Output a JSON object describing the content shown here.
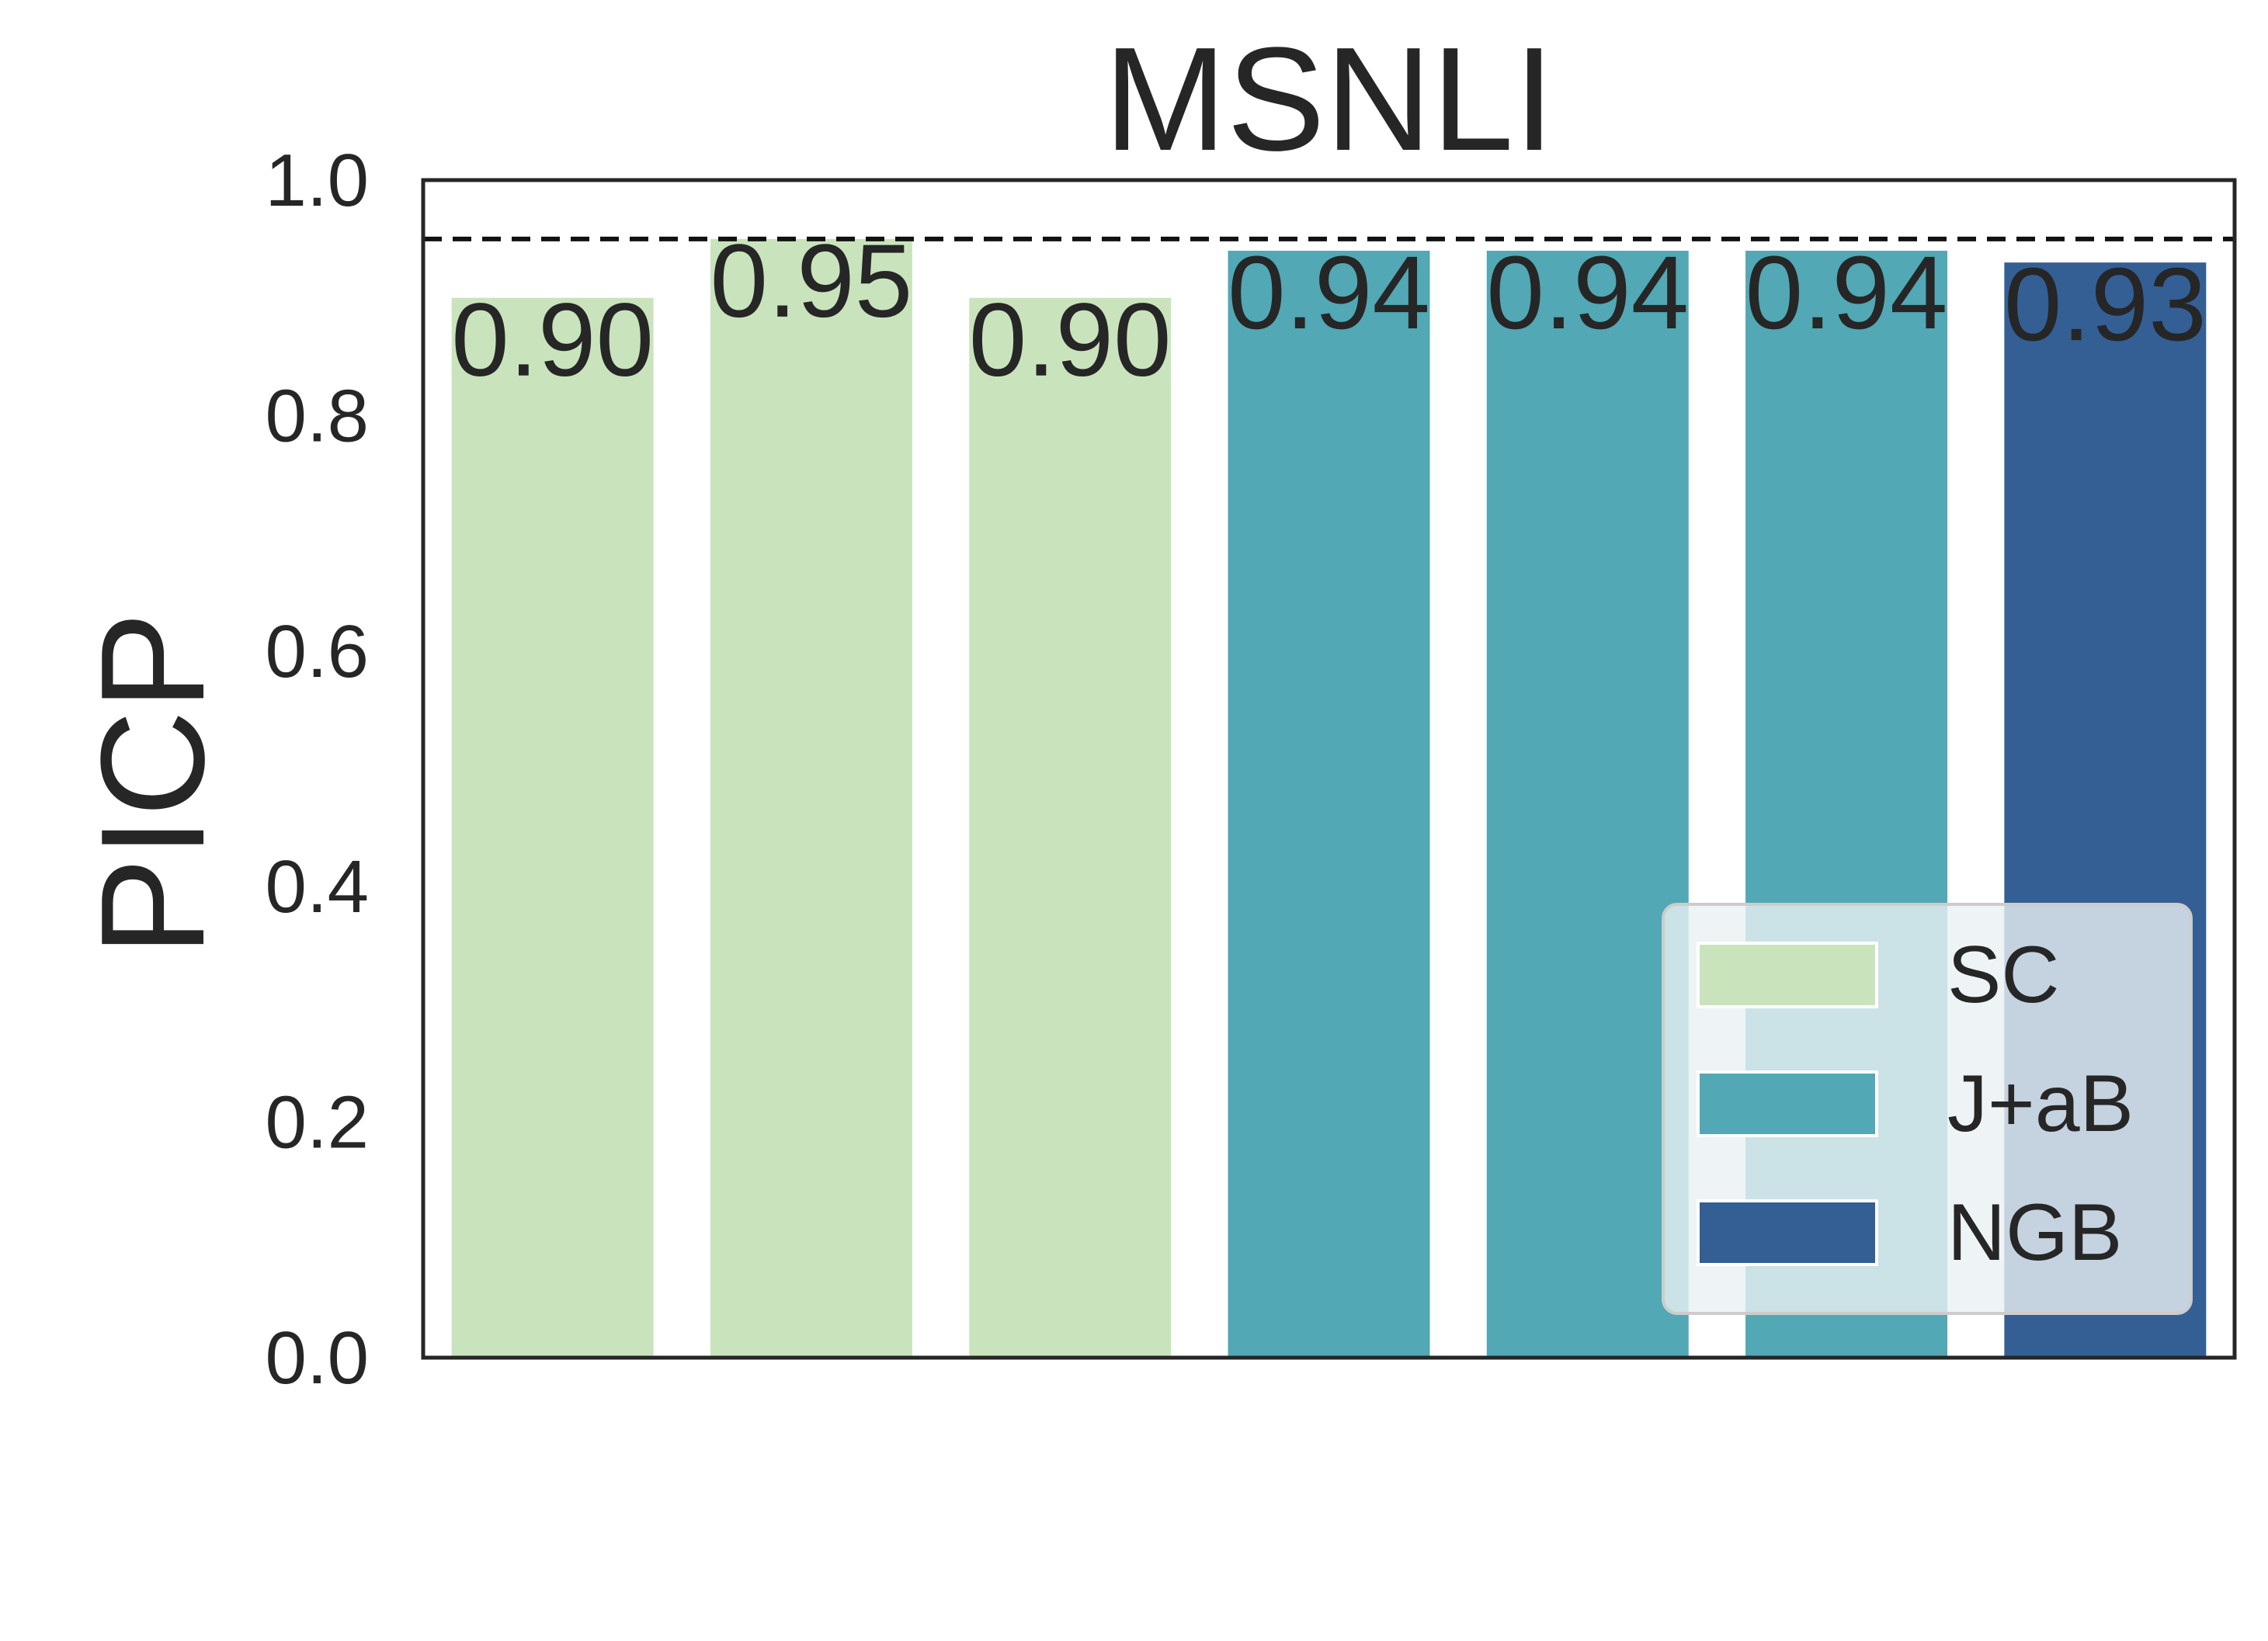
{
  "chart_data": {
    "type": "bar",
    "title": "MSNLI",
    "xlabel": "",
    "ylabel": "PICP",
    "ylim": [
      0,
      1.0
    ],
    "yticks": [
      "0.0",
      "0.2",
      "0.4",
      "0.6",
      "0.8",
      "1.0"
    ],
    "reference_line": {
      "value": 0.95,
      "style": "dashed"
    },
    "bars": [
      {
        "group": "SC",
        "value": 0.9,
        "label": "0.90"
      },
      {
        "group": "SC",
        "value": 0.95,
        "label": "0.95"
      },
      {
        "group": "SC",
        "value": 0.9,
        "label": "0.90"
      },
      {
        "group": "J+aB",
        "value": 0.94,
        "label": "0.94"
      },
      {
        "group": "J+aB",
        "value": 0.94,
        "label": "0.94"
      },
      {
        "group": "J+aB",
        "value": 0.94,
        "label": "0.94"
      },
      {
        "group": "NGB",
        "value": 0.93,
        "label": "0.93"
      }
    ],
    "legend": {
      "position": "lower-right",
      "entries": [
        {
          "name": "SC",
          "color": "#c9e4bc"
        },
        {
          "name": "J+aB",
          "color": "#52a8b4"
        },
        {
          "name": "NGB",
          "color": "#335f95"
        }
      ]
    },
    "grid": false
  }
}
